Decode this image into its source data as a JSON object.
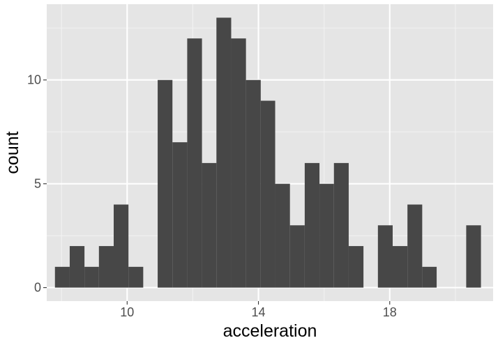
{
  "chart_data": {
    "type": "bar",
    "subtype": "histogram",
    "xlabel": "acceleration",
    "ylabel": "count",
    "xlim": [
      7.55,
      21.15
    ],
    "ylim": [
      -0.65,
      13.65
    ],
    "x_ticks": [
      10,
      14,
      18
    ],
    "y_ticks": [
      0,
      5,
      10
    ],
    "bin_width": 0.448,
    "bins": [
      {
        "x0": 7.8,
        "x1": 8.25,
        "count": 1
      },
      {
        "x0": 8.25,
        "x1": 8.7,
        "count": 2
      },
      {
        "x0": 8.7,
        "x1": 9.14,
        "count": 1
      },
      {
        "x0": 9.14,
        "x1": 9.59,
        "count": 2
      },
      {
        "x0": 9.59,
        "x1": 10.04,
        "count": 4
      },
      {
        "x0": 10.04,
        "x1": 10.49,
        "count": 1
      },
      {
        "x0": 10.49,
        "x1": 10.93,
        "count": 0
      },
      {
        "x0": 10.93,
        "x1": 11.38,
        "count": 10
      },
      {
        "x0": 11.38,
        "x1": 11.83,
        "count": 7
      },
      {
        "x0": 11.83,
        "x1": 12.28,
        "count": 12
      },
      {
        "x0": 12.28,
        "x1": 12.72,
        "count": 6
      },
      {
        "x0": 12.72,
        "x1": 13.17,
        "count": 13
      },
      {
        "x0": 13.17,
        "x1": 13.62,
        "count": 12
      },
      {
        "x0": 13.62,
        "x1": 14.07,
        "count": 10
      },
      {
        "x0": 14.07,
        "x1": 14.51,
        "count": 9
      },
      {
        "x0": 14.51,
        "x1": 14.96,
        "count": 5
      },
      {
        "x0": 14.96,
        "x1": 15.41,
        "count": 3
      },
      {
        "x0": 15.41,
        "x1": 15.86,
        "count": 6
      },
      {
        "x0": 15.86,
        "x1": 16.3,
        "count": 5
      },
      {
        "x0": 16.3,
        "x1": 16.75,
        "count": 6
      },
      {
        "x0": 16.75,
        "x1": 17.2,
        "count": 2
      },
      {
        "x0": 17.2,
        "x1": 17.64,
        "count": 0
      },
      {
        "x0": 17.64,
        "x1": 18.09,
        "count": 3
      },
      {
        "x0": 18.09,
        "x1": 18.54,
        "count": 2
      },
      {
        "x0": 18.54,
        "x1": 18.99,
        "count": 4
      },
      {
        "x0": 18.99,
        "x1": 19.43,
        "count": 1
      },
      {
        "x0": 19.43,
        "x1": 19.88,
        "count": 0
      },
      {
        "x0": 19.88,
        "x1": 20.33,
        "count": 0
      },
      {
        "x0": 20.33,
        "x1": 20.78,
        "count": 3
      }
    ],
    "grid": true,
    "legend": "none",
    "colors": {
      "bar": "#474747",
      "panel": "#e5e5e5",
      "grid_major": "#ffffff",
      "grid_minor": "#f2f2f2",
      "tick_text": "#4d4d4d",
      "title_text": "#000000"
    }
  }
}
